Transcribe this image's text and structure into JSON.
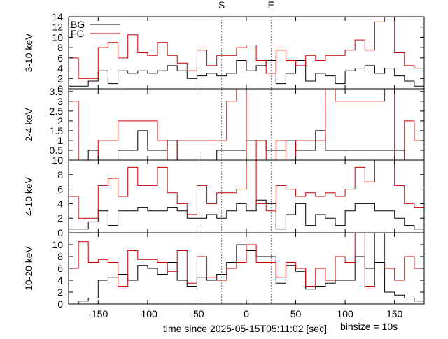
{
  "chart_data": {
    "type": "line",
    "step": true,
    "markers": [
      {
        "label": "S",
        "x": -25
      },
      {
        "label": "E",
        "x": 25
      }
    ],
    "xlabel": "time since 2025-05-15T05:11:02 [sec]",
    "note": "binsize = 10s",
    "xlim": [
      -180,
      180
    ],
    "xticks": [
      -150,
      -100,
      -50,
      0,
      50,
      100,
      150
    ],
    "legend": {
      "position": "top-left",
      "entries": [
        {
          "name": "BG",
          "color": "#000000"
        },
        {
          "name": "FG",
          "color": "#cc0000"
        }
      ]
    },
    "panels": [
      {
        "ylabel": "3-10 keV",
        "ylim": [
          0,
          14
        ],
        "yticks": [
          0,
          2,
          4,
          6,
          8,
          10,
          12,
          14
        ],
        "x": [
          -180,
          -170,
          -160,
          -150,
          -140,
          -130,
          -120,
          -110,
          -100,
          -90,
          -80,
          -70,
          -60,
          -50,
          -40,
          -30,
          -20,
          -10,
          0,
          10,
          20,
          30,
          40,
          50,
          60,
          70,
          80,
          90,
          100,
          110,
          120,
          130,
          140,
          150,
          160,
          170
        ],
        "series": [
          {
            "name": "BG",
            "color": "#000000",
            "values": [
              0.5,
              0.5,
              1.5,
              3.5,
              1.0,
              3.5,
              3.0,
              3.5,
              3.0,
              3.5,
              4.5,
              3.5,
              2.0,
              2.5,
              3.0,
              2.5,
              3.0,
              5.5,
              3.5,
              4.5,
              5.5,
              1.0,
              3.0,
              5.5,
              1.5,
              3.0,
              2.5,
              1.0,
              3.5,
              4.0,
              4.5,
              3.0,
              4.0,
              2.5,
              1.5,
              0.5
            ]
          },
          {
            "name": "FG",
            "color": "#cc0000",
            "values": [
              6.0,
              2.0,
              2.0,
              8.0,
              9.0,
              6.0,
              10.5,
              7.0,
              6.5,
              9.0,
              6.5,
              5.0,
              3.5,
              7.5,
              4.5,
              6.5,
              6.5,
              8.0,
              8.5,
              5.5,
              3.0,
              7.5,
              5.5,
              4.5,
              6.5,
              5.5,
              6.5,
              6.5,
              7.5,
              9.5,
              7.5,
              13.0,
              17.5,
              7.0,
              4.5,
              4.0
            ]
          }
        ]
      },
      {
        "ylabel": "2-4 keV",
        "ylim": [
          0,
          3.6
        ],
        "yticks": [
          0,
          0.5,
          1,
          1.5,
          2,
          2.5,
          3,
          3.5
        ],
        "x": [
          -180,
          -170,
          -160,
          -150,
          -140,
          -130,
          -120,
          -110,
          -100,
          -90,
          -80,
          -70,
          -60,
          -50,
          -40,
          -30,
          -20,
          -10,
          0,
          10,
          20,
          30,
          40,
          50,
          60,
          70,
          80,
          90,
          100,
          110,
          120,
          130,
          140,
          150,
          160,
          170
        ],
        "series": [
          {
            "name": "BG",
            "color": "#000000",
            "values": [
              0.0,
              0.0,
              0.5,
              0.0,
              0.0,
              0.5,
              0.5,
              1.5,
              0.5,
              0.5,
              1.0,
              0.0,
              0.0,
              0.0,
              0.0,
              0.5,
              0.5,
              0.5,
              1.0,
              1.0,
              0.5,
              0.5,
              1.0,
              0.5,
              0.5,
              1.5,
              0.5,
              0.5,
              0.5,
              0.5,
              0.5,
              0.5,
              0.5,
              0.5,
              0.0,
              0.0
            ]
          },
          {
            "name": "FG",
            "color": "#cc0000",
            "values": [
              3.0,
              0.0,
              0.0,
              1.0,
              1.0,
              2.0,
              2.0,
              2.0,
              2.0,
              1.0,
              0.0,
              1.0,
              1.0,
              1.0,
              1.0,
              1.0,
              3.0,
              5.0,
              0.0,
              1.0,
              0.0,
              1.0,
              0.0,
              1.0,
              1.0,
              1.0,
              5.0,
              3.0,
              3.0,
              3.0,
              3.0,
              3.0,
              5.0,
              0.0,
              2.0,
              1.0
            ]
          }
        ]
      },
      {
        "ylabel": "4-10 keV",
        "ylim": [
          0,
          10
        ],
        "yticks": [
          0,
          2,
          4,
          6,
          8,
          10
        ],
        "x": [
          -180,
          -170,
          -160,
          -150,
          -140,
          -130,
          -120,
          -110,
          -100,
          -90,
          -80,
          -70,
          -60,
          -50,
          -40,
          -30,
          -20,
          -10,
          0,
          10,
          20,
          30,
          40,
          50,
          60,
          70,
          80,
          90,
          100,
          110,
          120,
          130,
          140,
          150,
          160,
          170
        ],
        "series": [
          {
            "name": "BG",
            "color": "#000000",
            "values": [
              0.5,
              0.5,
              1.5,
              3.0,
              1.0,
              3.0,
              3.0,
              3.5,
              3.0,
              3.0,
              3.5,
              3.0,
              2.0,
              2.0,
              2.5,
              2.0,
              3.0,
              4.0,
              3.0,
              4.5,
              4.0,
              0.5,
              2.5,
              4.0,
              1.0,
              2.5,
              2.0,
              1.0,
              3.0,
              4.0,
              4.0,
              3.0,
              3.0,
              2.0,
              1.0,
              0.5
            ]
          },
          {
            "name": "FG",
            "color": "#cc0000",
            "values": [
              5.0,
              2.0,
              2.0,
              6.5,
              7.5,
              5.0,
              9.0,
              6.5,
              6.5,
              9.0,
              5.5,
              4.0,
              2.5,
              6.5,
              4.0,
              5.5,
              5.5,
              6.0,
              14.0,
              4.0,
              3.0,
              6.5,
              6.0,
              5.0,
              5.5,
              5.0,
              5.5,
              5.0,
              6.0,
              9.0,
              7.0,
              11.0,
              14.0,
              6.5,
              4.0,
              3.5
            ]
          }
        ]
      },
      {
        "ylabel": "10-20 keV",
        "ylim": [
          0,
          12
        ],
        "yticks": [
          0,
          2,
          4,
          6,
          8,
          10
        ],
        "x": [
          -180,
          -170,
          -160,
          -150,
          -140,
          -130,
          -120,
          -110,
          -100,
          -90,
          -80,
          -70,
          -60,
          -50,
          -40,
          -30,
          -20,
          -10,
          0,
          10,
          20,
          30,
          40,
          50,
          60,
          70,
          80,
          90,
          100,
          110,
          120,
          130,
          140,
          150,
          160,
          170
        ],
        "series": [
          {
            "name": "BG",
            "color": "#000000",
            "values": [
              0.0,
              0.5,
              1.0,
              4.0,
              4.5,
              5.0,
              4.0,
              6.5,
              6.0,
              5.0,
              7.0,
              4.0,
              3.0,
              4.5,
              4.0,
              5.0,
              7.0,
              10.0,
              9.0,
              8.0,
              8.0,
              3.5,
              6.5,
              5.5,
              2.5,
              3.0,
              3.5,
              4.0,
              4.0,
              8.0,
              6.0,
              7.0,
              2.0,
              1.5,
              1.0,
              0.5
            ]
          },
          {
            "name": "FG",
            "color": "#cc0000",
            "values": [
              6.0,
              10.5,
              7.0,
              7.5,
              7.0,
              3.0,
              9.0,
              7.5,
              7.5,
              7.0,
              5.5,
              9.0,
              3.5,
              8.0,
              4.5,
              4.0,
              6.0,
              7.0,
              10.0,
              7.0,
              7.0,
              4.5,
              7.0,
              6.0,
              3.0,
              6.0,
              4.0,
              8.0,
              7.0,
              12.5,
              3.0,
              12.0,
              6.0,
              4.0,
              8.0,
              6.0
            ]
          }
        ]
      }
    ]
  }
}
